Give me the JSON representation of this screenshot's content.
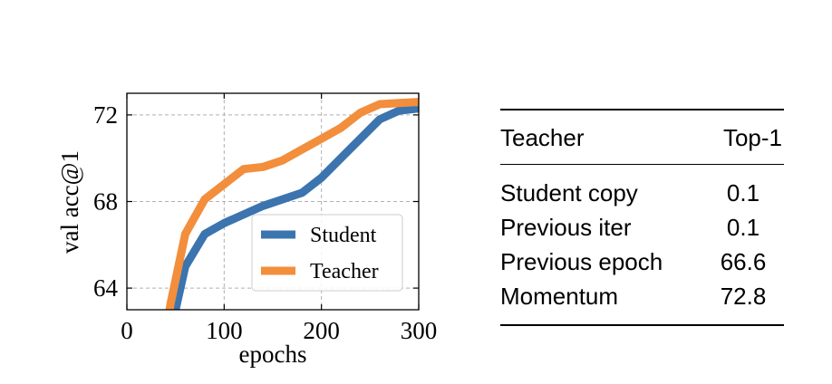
{
  "chart_data": {
    "type": "line",
    "xlabel": "epochs",
    "ylabel": "val acc@1",
    "xlim": [
      0,
      300
    ],
    "ylim": [
      63,
      73
    ],
    "xticks": [
      0,
      100,
      200,
      300
    ],
    "yticks": [
      64,
      68,
      72
    ],
    "grid": true,
    "legend_position": "lower-right",
    "series": [
      {
        "name": "Student",
        "color": "#3b74ae",
        "x": [
          40,
          50,
          60,
          80,
          100,
          120,
          140,
          160,
          180,
          200,
          220,
          240,
          260,
          280,
          300
        ],
        "y": [
          60.5,
          63.0,
          65.0,
          66.5,
          67.0,
          67.4,
          67.8,
          68.1,
          68.4,
          69.1,
          70.0,
          70.9,
          71.8,
          72.2,
          72.3
        ]
      },
      {
        "name": "Teacher",
        "color": "#f28e3c",
        "x": [
          40,
          45,
          60,
          80,
          100,
          120,
          140,
          160,
          180,
          200,
          220,
          240,
          260,
          280,
          300
        ],
        "y": [
          62.0,
          63.3,
          66.5,
          68.1,
          68.8,
          69.5,
          69.6,
          69.9,
          70.4,
          70.9,
          71.4,
          72.1,
          72.5,
          72.55,
          72.6
        ]
      }
    ]
  },
  "table": {
    "headers": [
      "Teacher",
      "Top-1"
    ],
    "rows": [
      {
        "teacher": "Student copy",
        "top1": "0.1"
      },
      {
        "teacher": "Previous iter",
        "top1": "0.1"
      },
      {
        "teacher": "Previous epoch",
        "top1": "66.6"
      },
      {
        "teacher": "Momentum",
        "top1": "72.8"
      }
    ]
  }
}
